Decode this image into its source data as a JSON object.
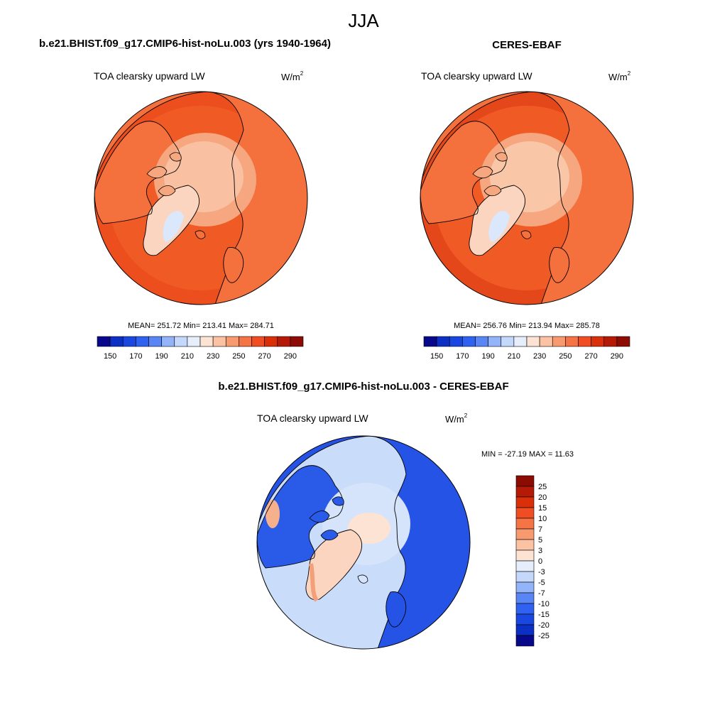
{
  "page": {
    "title": "JJA"
  },
  "panels": [
    {
      "id": "model",
      "header": "b.e21.BHIST.f09_g17.CMIP6-hist-noLu.003 (yrs 1940-1964)",
      "variable": "TOA clearsky upward LW",
      "units_base": "W/m",
      "units_exp": "2",
      "stats_text": "MEAN= 251.72  Min= 213.41  Max= 284.71"
    },
    {
      "id": "obs",
      "header": "CERES-EBAF",
      "variable": "TOA clearsky upward LW",
      "units_base": "W/m",
      "units_exp": "2",
      "stats_text": "MEAN= 256.76  Min= 213.94  Max= 285.78"
    },
    {
      "id": "diff",
      "header": "b.e21.BHIST.f09_g17.CMIP6-hist-noLu.003 - CERES-EBAF",
      "variable": "TOA clearsky upward LW",
      "units_base": "W/m",
      "units_exp": "2",
      "stats_text": "MIN = -27.19 MAX =  11.63"
    }
  ],
  "chart_data": [
    {
      "type": "heatmap",
      "projection": "north polar stereographic",
      "title": "b.e21.BHIST.f09_g17.CMIP6-hist-noLu.003 (yrs 1940-1964)",
      "variable": "TOA clearsky upward LW",
      "units": "W/m2",
      "mean": 251.72,
      "min": 213.41,
      "max": 284.71,
      "colorbar": {
        "orientation": "horizontal",
        "tick_labels": [
          "150",
          "170",
          "190",
          "210",
          "230",
          "250",
          "270",
          "290"
        ],
        "colors": [
          "#08088a",
          "#0c2fc4",
          "#1947e0",
          "#2f62f0",
          "#5a86f5",
          "#93b4f9",
          "#c4d8fb",
          "#e6eefc",
          "#fde3d4",
          "#fbc3a3",
          "#f89a70",
          "#f57445",
          "#f04e22",
          "#d9300a",
          "#b41a06",
          "#8c0b02"
        ]
      },
      "regions": {
        "ocean_midlat": "#f05a25",
        "land_midlat": "#f4703c",
        "subtropics": "#ec4e1e",
        "arctic_ocean": "#f9c1a2",
        "arctic_land": "#f7a77f",
        "greenland_interior": "#fbd5bf",
        "greenland_summit": "#dbe7fb"
      }
    },
    {
      "type": "heatmap",
      "projection": "north polar stereographic",
      "title": "CERES-EBAF",
      "variable": "TOA clearsky upward LW",
      "units": "W/m2",
      "mean": 256.76,
      "min": 213.94,
      "max": 285.78,
      "colorbar": {
        "orientation": "horizontal",
        "tick_labels": [
          "150",
          "170",
          "190",
          "210",
          "230",
          "250",
          "270",
          "290"
        ],
        "colors": [
          "#08088a",
          "#0c2fc4",
          "#1947e0",
          "#2f62f0",
          "#5a86f5",
          "#93b4f9",
          "#c4d8fb",
          "#e6eefc",
          "#fde3d4",
          "#fbc3a3",
          "#f89a70",
          "#f57445",
          "#f04e22",
          "#d9300a",
          "#b41a06",
          "#8c0b02"
        ]
      },
      "regions": {
        "ocean_midlat": "#f05a25",
        "land_midlat": "#f4703c",
        "subtropics": "#e4481a",
        "arctic_ocean": "#fac6a8",
        "arctic_land": "#f7a77f",
        "greenland_interior": "#fbd5bf",
        "greenland_summit": "#dbe7fb"
      }
    },
    {
      "type": "heatmap",
      "projection": "north polar stereographic",
      "title": "b.e21.BHIST.f09_g17.CMIP6-hist-noLu.003 - CERES-EBAF",
      "variable": "TOA clearsky upward LW",
      "units": "W/m2",
      "min": -27.19,
      "max": 11.63,
      "colorbar": {
        "orientation": "vertical",
        "tick_labels": [
          "25",
          "20",
          "15",
          "10",
          "7",
          "5",
          "3",
          "0",
          "-3",
          "-5",
          "-7",
          "-10",
          "-15",
          "-20",
          "-25"
        ],
        "colors": [
          "#8c0b02",
          "#b41a06",
          "#d9300a",
          "#f04e22",
          "#f57445",
          "#f89a70",
          "#fbc3a3",
          "#fde3d4",
          "#e6eefc",
          "#c4d8fb",
          "#93b4f9",
          "#5a86f5",
          "#2f62f0",
          "#1947e0",
          "#0c2fc4",
          "#08088a"
        ]
      },
      "regions": {
        "ocean_background": "#c9dcfa",
        "eurasia": "#2553e6",
        "north_america": "#2a5ae8",
        "arctic_ocean": "#d6e4fb",
        "central_arctic": "#fde3d4",
        "greenland": "#fbd5bf",
        "greenland_coast": "#f3a07a"
      }
    }
  ]
}
